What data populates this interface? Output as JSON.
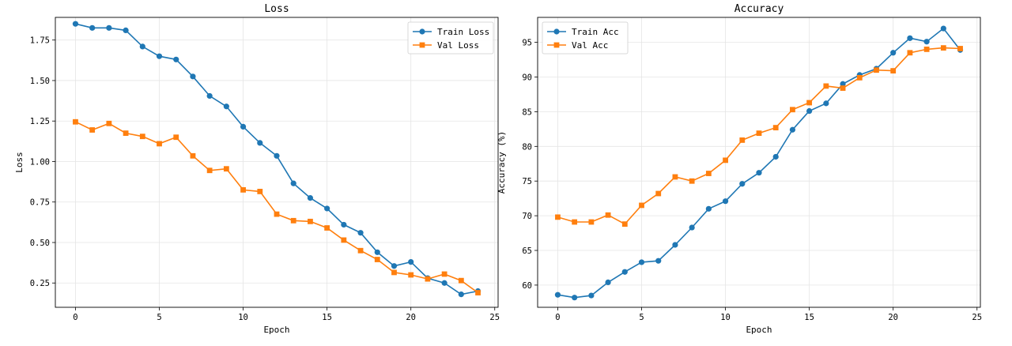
{
  "colors": {
    "train": "#1f77b4",
    "val": "#ff7f0e",
    "grid": "#e5e5e5",
    "axis": "#000000"
  },
  "chart_data": [
    {
      "type": "line",
      "title": "Loss",
      "xlabel": "Epoch",
      "ylabel": "Loss",
      "xlim": [
        -1.2,
        25.2
      ],
      "ylim": [
        0.1,
        1.89
      ],
      "xticks": [
        0,
        5,
        10,
        15,
        20,
        25
      ],
      "xtick_labels": [
        "0",
        "5",
        "10",
        "15",
        "20",
        "25"
      ],
      "yticks": [
        0.25,
        0.5,
        0.75,
        1.0,
        1.25,
        1.5,
        1.75
      ],
      "ytick_labels": [
        "0.25",
        "0.50",
        "0.75",
        "1.00",
        "1.25",
        "1.50",
        "1.75"
      ],
      "grid": true,
      "legend_position": "top-right",
      "x": [
        0,
        1,
        2,
        3,
        4,
        5,
        6,
        7,
        8,
        9,
        10,
        11,
        12,
        13,
        14,
        15,
        16,
        17,
        18,
        19,
        20,
        21,
        22,
        23,
        24
      ],
      "series": [
        {
          "name": "Train Loss",
          "marker": "circle",
          "color": "#1f77b4",
          "values": [
            1.85,
            1.825,
            1.825,
            1.81,
            1.71,
            1.65,
            1.63,
            1.525,
            1.405,
            1.34,
            1.215,
            1.115,
            1.035,
            0.865,
            0.775,
            0.71,
            0.61,
            0.56,
            0.44,
            0.355,
            0.38,
            0.28,
            0.25,
            0.18,
            0.2
          ]
        },
        {
          "name": "Val Loss",
          "marker": "square",
          "color": "#ff7f0e",
          "values": [
            1.245,
            1.195,
            1.235,
            1.175,
            1.155,
            1.11,
            1.15,
            1.035,
            0.945,
            0.955,
            0.825,
            0.815,
            0.675,
            0.635,
            0.63,
            0.59,
            0.515,
            0.45,
            0.395,
            0.315,
            0.3,
            0.275,
            0.305,
            0.265,
            0.19
          ]
        }
      ]
    },
    {
      "type": "line",
      "title": "Accuracy",
      "xlabel": "Epoch",
      "ylabel": "Accuracy (%)",
      "xlim": [
        -1.2,
        25.2
      ],
      "ylim": [
        56.8,
        98.6
      ],
      "xticks": [
        0,
        5,
        10,
        15,
        20,
        25
      ],
      "xtick_labels": [
        "0",
        "5",
        "10",
        "15",
        "20",
        "25"
      ],
      "yticks": [
        60,
        65,
        70,
        75,
        80,
        85,
        90,
        95
      ],
      "ytick_labels": [
        "60",
        "65",
        "70",
        "75",
        "80",
        "85",
        "90",
        "95"
      ],
      "grid": true,
      "legend_position": "top-left",
      "x": [
        0,
        1,
        2,
        3,
        4,
        5,
        6,
        7,
        8,
        9,
        10,
        11,
        12,
        13,
        14,
        15,
        16,
        17,
        18,
        19,
        20,
        21,
        22,
        23,
        24
      ],
      "series": [
        {
          "name": "Train Acc",
          "marker": "circle",
          "color": "#1f77b4",
          "values": [
            58.6,
            58.2,
            58.5,
            60.4,
            61.9,
            63.3,
            63.5,
            65.8,
            68.3,
            71.0,
            72.1,
            74.6,
            76.2,
            78.5,
            82.4,
            85.1,
            86.2,
            89.0,
            90.3,
            91.2,
            93.5,
            95.6,
            95.1,
            97.0,
            93.9
          ]
        },
        {
          "name": "Val Acc",
          "marker": "square",
          "color": "#ff7f0e",
          "values": [
            69.8,
            69.1,
            69.1,
            70.1,
            68.8,
            71.5,
            73.2,
            75.6,
            75.0,
            76.1,
            78.0,
            80.9,
            81.9,
            82.7,
            85.3,
            86.3,
            88.7,
            88.4,
            89.9,
            91.0,
            90.9,
            93.5,
            94.0,
            94.2,
            94.1
          ]
        }
      ]
    }
  ]
}
